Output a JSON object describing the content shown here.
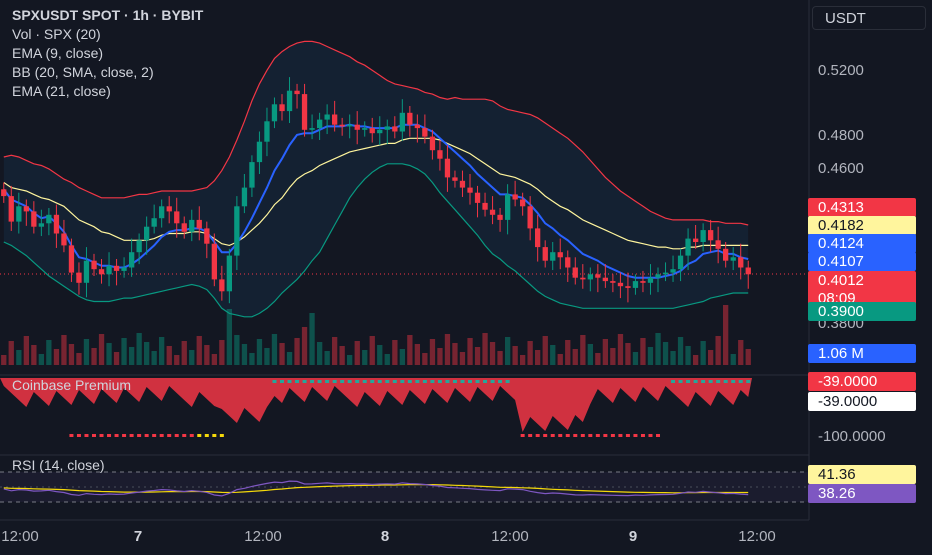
{
  "legend": {
    "title": "SPXUSDT SPOT · 1h · BYBIT",
    "indicators": [
      "Vol · SPX (20)",
      "EMA (9, close)",
      "BB (20, SMA, close, 2)",
      "EMA (21, close)"
    ]
  },
  "currency_button": "USDT",
  "panes": {
    "premium_label": "Coinbase Premium",
    "rsi_label": "RSI (14, close)"
  },
  "price_axis": [
    "0.5200",
    "0.4800",
    "0.4600",
    "0.3800"
  ],
  "premium_axis": [
    "-100.0000"
  ],
  "badges": [
    {
      "text": "0.4313",
      "bg": "#f23645",
      "fg": "#ffffff",
      "top": 0
    },
    {
      "text": "0.4182",
      "bg": "#fff59d",
      "fg": "#131722"
    },
    {
      "text": "0.4124",
      "bg": "#2962ff",
      "fg": "#ffffff"
    },
    {
      "text": "0.4107",
      "bg": "#2962ff",
      "fg": "#ffffff"
    },
    {
      "text": "0.4012\n08:09",
      "bg": "#f23645",
      "fg": "#ffffff"
    },
    {
      "text": "0.3900",
      "bg": "#089981",
      "fg": "#ffffff"
    },
    {
      "text": "1.06 M",
      "bg": "#2962ff",
      "fg": "#ffffff"
    },
    {
      "text": "-39.0000",
      "bg": "#f23645",
      "fg": "#ffffff"
    },
    {
      "text": "-39.0000",
      "bg": "#ffffff",
      "fg": "#131722"
    },
    {
      "text": "41.36",
      "bg": "#fff59d",
      "fg": "#131722"
    },
    {
      "text": "38.26",
      "bg": "#7e57c2",
      "fg": "#ffffff"
    }
  ],
  "time_axis": [
    {
      "label": "12:00",
      "bold": false
    },
    {
      "label": "7",
      "bold": true
    },
    {
      "label": "12:00",
      "bold": false
    },
    {
      "label": "8",
      "bold": true
    },
    {
      "label": "12:00",
      "bold": false
    },
    {
      "label": "9",
      "bold": true
    },
    {
      "label": "12:00",
      "bold": false
    }
  ],
  "colors": {
    "up": "#089981",
    "down": "#f23645",
    "bb_upper": "#f23645",
    "bb_lower": "#089981",
    "ema9": "#2962ff",
    "ema21": "#fff59d",
    "rsi": "#7e57c2",
    "rsi_ma": "#f5d90a"
  },
  "chart_data": {
    "type": "candlestick",
    "symbol": "SPXUSDT SPOT",
    "timeframe": "1h",
    "exchange": "BYBIT",
    "last_price": 0.4012,
    "countdown": "08:09",
    "close": [
      0.447,
      0.432,
      0.441,
      0.438,
      0.429,
      0.431,
      0.436,
      0.425,
      0.418,
      0.402,
      0.396,
      0.409,
      0.404,
      0.401,
      0.406,
      0.403,
      0.405,
      0.414,
      0.421,
      0.429,
      0.434,
      0.441,
      0.438,
      0.431,
      0.426,
      0.433,
      0.428,
      0.419,
      0.398,
      0.391,
      0.412,
      0.441,
      0.452,
      0.467,
      0.479,
      0.491,
      0.501,
      0.497,
      0.509,
      0.507,
      0.486,
      0.487,
      0.492,
      0.495,
      0.489,
      0.488,
      0.489,
      0.486,
      0.487,
      0.484,
      0.486,
      0.488,
      0.485,
      0.496,
      0.489,
      0.487,
      0.482,
      0.474,
      0.469,
      0.458,
      0.456,
      0.452,
      0.449,
      0.443,
      0.439,
      0.436,
      0.433,
      0.448,
      0.445,
      0.441,
      0.428,
      0.417,
      0.409,
      0.414,
      0.411,
      0.405,
      0.399,
      0.398,
      0.401,
      0.399,
      0.397,
      0.396,
      0.394,
      0.393,
      0.397,
      0.396,
      0.399,
      0.401,
      0.402,
      0.404,
      0.412,
      0.422,
      0.42,
      0.427,
      0.421,
      0.416,
      0.409,
      0.411,
      0.405,
      0.401
    ],
    "ema9": [
      0.451,
      0.445,
      0.443,
      0.441,
      0.437,
      0.434,
      0.435,
      0.431,
      0.426,
      0.418,
      0.411,
      0.41,
      0.408,
      0.406,
      0.406,
      0.405,
      0.405,
      0.407,
      0.41,
      0.414,
      0.418,
      0.423,
      0.426,
      0.427,
      0.427,
      0.428,
      0.428,
      0.426,
      0.42,
      0.414,
      0.414,
      0.419,
      0.426,
      0.434,
      0.443,
      0.452,
      0.462,
      0.469,
      0.477,
      0.483,
      0.484,
      0.484,
      0.486,
      0.488,
      0.488,
      0.488,
      0.489,
      0.488,
      0.488,
      0.487,
      0.487,
      0.487,
      0.487,
      0.489,
      0.489,
      0.489,
      0.487,
      0.485,
      0.481,
      0.477,
      0.473,
      0.469,
      0.465,
      0.46,
      0.456,
      0.452,
      0.448,
      0.448,
      0.447,
      0.446,
      0.442,
      0.437,
      0.431,
      0.428,
      0.424,
      0.421,
      0.417,
      0.413,
      0.411,
      0.409,
      0.406,
      0.404,
      0.402,
      0.4,
      0.399,
      0.399,
      0.399,
      0.399,
      0.4,
      0.401,
      0.403,
      0.407,
      0.409,
      0.413,
      0.414,
      0.415,
      0.413,
      0.413,
      0.411,
      0.41
    ],
    "ema21": [
      0.455,
      0.452,
      0.451,
      0.45,
      0.448,
      0.446,
      0.445,
      0.443,
      0.441,
      0.437,
      0.433,
      0.431,
      0.429,
      0.426,
      0.425,
      0.423,
      0.421,
      0.421,
      0.421,
      0.421,
      0.422,
      0.424,
      0.425,
      0.425,
      0.425,
      0.426,
      0.426,
      0.425,
      0.422,
      0.419,
      0.418,
      0.42,
      0.423,
      0.427,
      0.431,
      0.436,
      0.442,
      0.446,
      0.452,
      0.457,
      0.46,
      0.462,
      0.465,
      0.467,
      0.469,
      0.471,
      0.473,
      0.474,
      0.475,
      0.476,
      0.477,
      0.478,
      0.478,
      0.48,
      0.481,
      0.481,
      0.481,
      0.481,
      0.48,
      0.478,
      0.476,
      0.474,
      0.472,
      0.469,
      0.466,
      0.463,
      0.46,
      0.459,
      0.458,
      0.456,
      0.454,
      0.451,
      0.447,
      0.444,
      0.441,
      0.439,
      0.436,
      0.433,
      0.431,
      0.429,
      0.427,
      0.425,
      0.423,
      0.421,
      0.42,
      0.419,
      0.418,
      0.417,
      0.417,
      0.416,
      0.416,
      0.417,
      0.417,
      0.418,
      0.418,
      0.418,
      0.418,
      0.418,
      0.418,
      0.418
    ],
    "bb_upper": [
      0.47,
      0.471,
      0.47,
      0.468,
      0.466,
      0.465,
      0.463,
      0.46,
      0.457,
      0.455,
      0.452,
      0.45,
      0.448,
      0.446,
      0.446,
      0.446,
      0.446,
      0.447,
      0.448,
      0.448,
      0.449,
      0.45,
      0.45,
      0.45,
      0.45,
      0.45,
      0.451,
      0.452,
      0.456,
      0.462,
      0.47,
      0.48,
      0.491,
      0.503,
      0.513,
      0.521,
      0.528,
      0.532,
      0.535,
      0.537,
      0.538,
      0.538,
      0.537,
      0.535,
      0.533,
      0.531,
      0.529,
      0.526,
      0.524,
      0.521,
      0.518,
      0.515,
      0.513,
      0.512,
      0.511,
      0.51,
      0.508,
      0.507,
      0.505,
      0.504,
      0.505,
      0.504,
      0.504,
      0.504,
      0.504,
      0.503,
      0.5,
      0.498,
      0.497,
      0.496,
      0.495,
      0.493,
      0.49,
      0.487,
      0.484,
      0.481,
      0.477,
      0.473,
      0.468,
      0.463,
      0.458,
      0.454,
      0.45,
      0.447,
      0.444,
      0.441,
      0.438,
      0.436,
      0.434,
      0.433,
      0.433,
      0.433,
      0.433,
      0.433,
      0.432,
      0.432,
      0.431,
      0.431,
      0.431,
      0.43
    ],
    "bb_lower": [
      0.42,
      0.418,
      0.415,
      0.412,
      0.408,
      0.404,
      0.4,
      0.397,
      0.394,
      0.391,
      0.388,
      0.386,
      0.385,
      0.385,
      0.385,
      0.386,
      0.387,
      0.387,
      0.388,
      0.389,
      0.39,
      0.391,
      0.392,
      0.393,
      0.394,
      0.395,
      0.394,
      0.392,
      0.387,
      0.381,
      0.378,
      0.377,
      0.376,
      0.376,
      0.378,
      0.381,
      0.385,
      0.39,
      0.394,
      0.398,
      0.403,
      0.409,
      0.414,
      0.422,
      0.43,
      0.438,
      0.446,
      0.452,
      0.457,
      0.461,
      0.464,
      0.466,
      0.466,
      0.466,
      0.465,
      0.463,
      0.46,
      0.455,
      0.449,
      0.444,
      0.439,
      0.434,
      0.429,
      0.424,
      0.418,
      0.413,
      0.41,
      0.406,
      0.403,
      0.399,
      0.395,
      0.391,
      0.388,
      0.386,
      0.384,
      0.383,
      0.382,
      0.381,
      0.381,
      0.381,
      0.381,
      0.381,
      0.381,
      0.381,
      0.381,
      0.381,
      0.381,
      0.381,
      0.381,
      0.381,
      0.382,
      0.383,
      0.384,
      0.385,
      0.387,
      0.388,
      0.389,
      0.39,
      0.39,
      0.39
    ],
    "volume_last": "1.06 M",
    "coinbase_premium_last": -39.0,
    "coinbase_premium_axis_min": -100.0,
    "rsi": {
      "length": 14,
      "value": 38.26,
      "ma_value": 41.36
    },
    "price_axis_ticks": [
      0.52,
      0.48,
      0.46,
      0.38
    ],
    "time_ticks": [
      "12:00",
      "7",
      "12:00",
      "8",
      "12:00",
      "9",
      "12:00"
    ]
  }
}
